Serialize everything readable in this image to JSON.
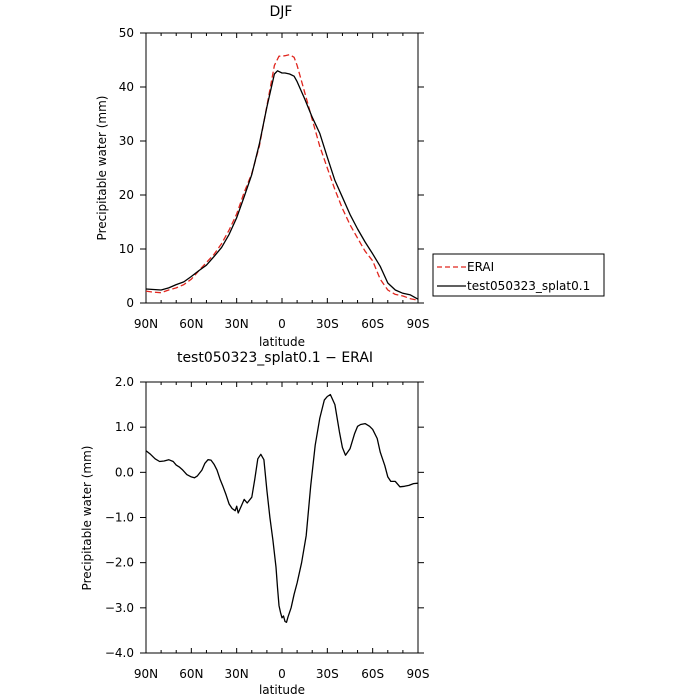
{
  "chart_data": [
    {
      "type": "line",
      "title": "DJF",
      "xlabel": "latitude",
      "ylabel": "Precipitable water (mm)",
      "xlim": [
        90,
        -90
      ],
      "ylim": [
        0,
        50
      ],
      "x_ticks": [
        90,
        60,
        30,
        0,
        -30,
        -60,
        -90
      ],
      "x_tick_labels": [
        "90N",
        "60N",
        "30N",
        "0",
        "30S",
        "60S",
        "90S"
      ],
      "y_ticks": [
        0,
        10,
        20,
        30,
        40,
        50
      ],
      "y_tick_labels": [
        "0",
        "10",
        "20",
        "30",
        "40",
        "50"
      ],
      "legend_position": "right",
      "series": [
        {
          "name": "ERAI",
          "color": "#e0261e",
          "dash": "dashed",
          "x": [
            90,
            85,
            80,
            75,
            70,
            65,
            60,
            55,
            50,
            45,
            40,
            35,
            30,
            25,
            20,
            15,
            10,
            5,
            2,
            0,
            -2,
            -5,
            -8,
            -10,
            -15,
            -20,
            -25,
            -30,
            -35,
            -40,
            -45,
            -50,
            -55,
            -60,
            -65,
            -70,
            -75,
            -80,
            -85,
            -90
          ],
          "y": [
            2.2,
            2.0,
            1.9,
            2.4,
            2.8,
            3.4,
            4.4,
            6.0,
            7.5,
            9.0,
            11.0,
            13.5,
            16.5,
            20.5,
            24.0,
            29.0,
            36.5,
            44.0,
            45.7,
            45.7,
            45.8,
            46.0,
            45.5,
            44.0,
            39.0,
            34.0,
            29.0,
            25.0,
            21.0,
            17.5,
            14.5,
            12.0,
            9.6,
            7.8,
            4.4,
            2.4,
            1.6,
            1.3,
            0.8,
            0.5
          ]
        },
        {
          "name": "test050323_splat0.1",
          "color": "#000000",
          "dash": "solid",
          "x": [
            90,
            85,
            80,
            75,
            70,
            65,
            60,
            55,
            50,
            45,
            40,
            35,
            30,
            25,
            20,
            15,
            10,
            5,
            3,
            0,
            -2,
            -5,
            -8,
            -10,
            -15,
            -20,
            -25,
            -30,
            -35,
            -40,
            -45,
            -50,
            -55,
            -60,
            -65,
            -70,
            -75,
            -80,
            -85,
            -90
          ],
          "y": [
            2.6,
            2.5,
            2.4,
            2.8,
            3.4,
            3.9,
            4.9,
            6.0,
            7.0,
            8.6,
            10.3,
            12.7,
            15.8,
            19.7,
            23.8,
            29.4,
            36.3,
            42.4,
            43.0,
            42.6,
            42.6,
            42.4,
            42.0,
            41.0,
            37.8,
            34.4,
            31.4,
            27.0,
            22.7,
            19.6,
            16.4,
            13.7,
            11.3,
            9.1,
            6.8,
            3.7,
            2.4,
            1.8,
            1.5,
            0.7
          ]
        }
      ]
    },
    {
      "type": "line",
      "title": "test050323_splat0.1 − ERAI",
      "xlabel": "latitude",
      "ylabel": "Precipitable water (mm)",
      "xlim": [
        90,
        -90
      ],
      "ylim": [
        -4.0,
        2.0
      ],
      "x_ticks": [
        90,
        60,
        30,
        0,
        -30,
        -60,
        -90
      ],
      "x_tick_labels": [
        "90N",
        "60N",
        "30N",
        "0",
        "30S",
        "60S",
        "90S"
      ],
      "y_ticks": [
        2.0,
        1.0,
        0.0,
        -1.0,
        -2.0,
        -3.0,
        -4.0
      ],
      "y_tick_labels": [
        "2.0",
        "1.0",
        "0.0",
        "−1.0",
        "−2.0",
        "−3.0",
        "−4.0"
      ],
      "series": [
        {
          "color": "#000000",
          "dash": "solid",
          "x": [
            90,
            87,
            84,
            81,
            78,
            75,
            72,
            70,
            68,
            66,
            63,
            60,
            58,
            56,
            53,
            51,
            49,
            47,
            45,
            43,
            41,
            39,
            37,
            35,
            33,
            31,
            30,
            29,
            27,
            25,
            23,
            20,
            18,
            16,
            14,
            12,
            10,
            8,
            6,
            4,
            3,
            2,
            1,
            0,
            -1,
            -2,
            -3,
            -4,
            -6,
            -8,
            -10,
            -13,
            -16,
            -19,
            -22,
            -25,
            -28,
            -30,
            -32,
            -35,
            -38,
            -40,
            -42,
            -45,
            -48,
            -50,
            -52,
            -55,
            -58,
            -60,
            -63,
            -65,
            -68,
            -70,
            -72,
            -75,
            -78,
            -81,
            -84,
            -87,
            -90
          ],
          "y": [
            0.48,
            0.4,
            0.3,
            0.24,
            0.25,
            0.28,
            0.24,
            0.16,
            0.12,
            0.06,
            -0.05,
            -0.1,
            -0.12,
            -0.08,
            0.05,
            0.2,
            0.28,
            0.27,
            0.18,
            0.05,
            -0.15,
            -0.32,
            -0.5,
            -0.7,
            -0.8,
            -0.85,
            -0.75,
            -0.9,
            -0.75,
            -0.6,
            -0.68,
            -0.55,
            -0.15,
            0.3,
            0.4,
            0.28,
            -0.4,
            -1.0,
            -1.5,
            -2.1,
            -2.55,
            -2.95,
            -3.1,
            -3.22,
            -3.18,
            -3.3,
            -3.32,
            -3.2,
            -3.0,
            -2.7,
            -2.45,
            -2.0,
            -1.4,
            -0.3,
            0.6,
            1.2,
            1.6,
            1.68,
            1.72,
            1.5,
            0.9,
            0.55,
            0.38,
            0.52,
            0.85,
            1.02,
            1.06,
            1.08,
            1.02,
            0.95,
            0.75,
            0.45,
            0.15,
            -0.1,
            -0.2,
            -0.2,
            -0.32,
            -0.31,
            -0.29,
            -0.25,
            -0.24
          ]
        }
      ]
    }
  ],
  "legend": {
    "items": [
      {
        "label": "ERAI",
        "color": "#e0261e",
        "dash": "dashed"
      },
      {
        "label": "test050323_splat0.1",
        "color": "#000000",
        "dash": "solid"
      }
    ]
  }
}
